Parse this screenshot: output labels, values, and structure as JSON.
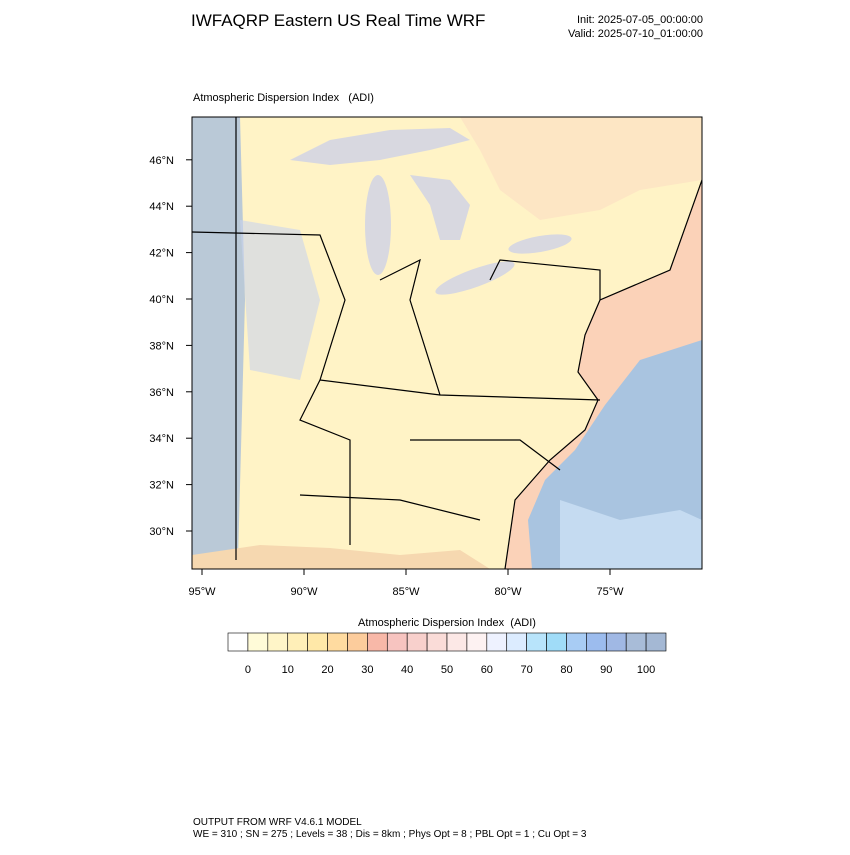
{
  "header": {
    "title": "IWFAQRP Eastern US Real Time WRF",
    "init": "Init: 2025-07-05_00:00:00",
    "valid": "Valid: 2025-07-10_01:00:00"
  },
  "map": {
    "title": "Atmospheric Dispersion Index   (ADI)",
    "lat_labels": [
      "30°N",
      "32°N",
      "34°N",
      "36°N",
      "38°N",
      "40°N",
      "42°N",
      "44°N",
      "46°N"
    ],
    "lon_labels": [
      "95°W",
      "90°W",
      "85°W",
      "80°W",
      "75°W"
    ]
  },
  "colorbar": {
    "title": "Atmospheric Dispersion Index  (ADI)",
    "labels": [
      "0",
      "10",
      "20",
      "30",
      "40",
      "50",
      "60",
      "70",
      "80",
      "90",
      "100"
    ],
    "colors": [
      "#ffffff",
      "#fffbd8",
      "#fff5c8",
      "#ffefb8",
      "#ffe8a8",
      "#ffdba0",
      "#fccc9c",
      "#f8b8a8",
      "#f7c4c0",
      "#f8d0cc",
      "#fadcd8",
      "#fce8e6",
      "#fdf2f2",
      "#eef2ff",
      "#dcecff",
      "#b8e4fb",
      "#a0dcf8",
      "#a8ccf4",
      "#9cbcee",
      "#a0b8e4",
      "#a8bcd8",
      "#a4b8d4"
    ]
  },
  "footer": {
    "line1": "OUTPUT FROM WRF V4.6.1 MODEL",
    "line2": "WE = 310 ; SN = 275 ; Levels = 38 ; Dis = 8km ; Phys Opt = 8 ; PBL Opt = 1 ; Cu Opt = 3"
  }
}
